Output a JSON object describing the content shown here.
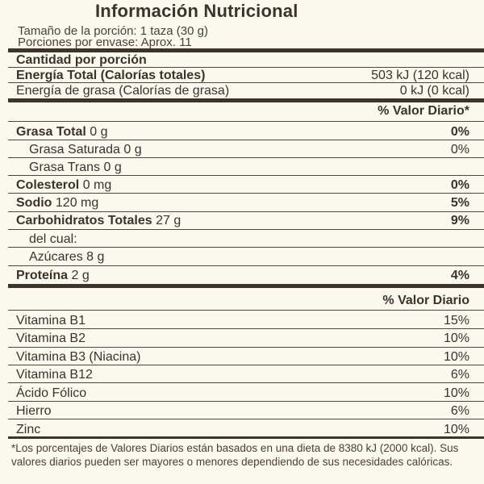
{
  "title": "Información Nutricional",
  "serving": {
    "size": "Tamaño de la porción: 1 taza (30 g)",
    "servings": "Porciones por envase: Aprox. 11"
  },
  "amount_header": "Cantidad por porción",
  "energy": {
    "label": "Energía Total (Calorías totales)",
    "value": "503 kJ (120 kcal)"
  },
  "energy_fat": {
    "label": "Energía de grasa (Calorías de grasa)",
    "value": "0 kJ (0 kcal)"
  },
  "dv_header": "% Valor Diario*",
  "nutrients": [
    {
      "label": "Grasa Total",
      "amount": "0 g",
      "dv": "0%"
    },
    {
      "label": "Grasa Saturada 0 g",
      "dv": "0%"
    },
    {
      "label": "Grasa Trans 0 g",
      "dv": ""
    },
    {
      "label": "Colesterol",
      "amount": "0 mg",
      "dv": "0%"
    },
    {
      "label": "Sodio",
      "amount": "120 mg",
      "dv": "5%"
    },
    {
      "label": "Carbohidratos Totales",
      "amount": "27 g",
      "dv": "9%"
    },
    {
      "label": "del cual:",
      "dv": ""
    },
    {
      "label": "Azúcares 8 g",
      "dv": ""
    },
    {
      "label": "Proteína",
      "amount": "2 g",
      "dv": "4%"
    }
  ],
  "vit_header": "% Valor Diario",
  "vitamins": [
    {
      "label": "Vitamina B1",
      "dv": "15%"
    },
    {
      "label": "Vitamina B2",
      "dv": "10%"
    },
    {
      "label": "Vitamina B3 (Niacina)",
      "dv": "10%"
    },
    {
      "label": "Vitamina B12",
      "dv": "6%"
    },
    {
      "label": "Ácido Fólico",
      "dv": "10%"
    },
    {
      "label": "Hierro",
      "dv": "6%"
    },
    {
      "label": "Zinc",
      "dv": "10%"
    }
  ],
  "footnote": "*Los porcentajes de Valores Diarios están basados en una dieta de 8380 kJ (2000 kcal). Sus valores diarios pueden ser mayores o menores dependiendo de sus necesidades calóricas."
}
